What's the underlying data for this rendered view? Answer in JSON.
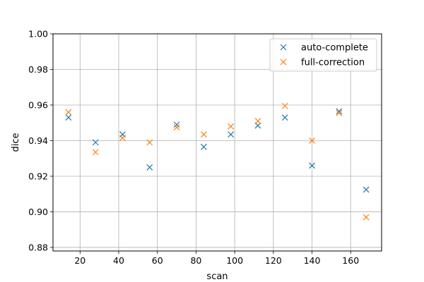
{
  "chart_data": {
    "type": "scatter",
    "xlabel": "scan",
    "ylabel": "dice",
    "xlim": [
      6,
      176
    ],
    "ylim": [
      0.878,
      1.0
    ],
    "xticks": [
      20,
      40,
      60,
      80,
      100,
      120,
      140,
      160
    ],
    "yticks": [
      0.88,
      0.9,
      0.92,
      0.94,
      0.96,
      0.98,
      1.0
    ],
    "grid": true,
    "legend_position": "top-right",
    "marker": "x",
    "series": [
      {
        "name": "auto-complete",
        "color": "#1f77b4",
        "x": [
          14,
          28,
          42,
          56,
          70,
          84,
          98,
          112,
          126,
          140,
          154,
          168
        ],
        "y": [
          0.953,
          0.939,
          0.9435,
          0.925,
          0.949,
          0.9365,
          0.9435,
          0.9485,
          0.953,
          0.926,
          0.9565,
          0.9125
        ]
      },
      {
        "name": "full-correction",
        "color": "#ff7f0e",
        "x": [
          14,
          28,
          42,
          56,
          70,
          84,
          98,
          112,
          126,
          140,
          154,
          168
        ],
        "y": [
          0.956,
          0.9335,
          0.9415,
          0.939,
          0.9475,
          0.9435,
          0.948,
          0.951,
          0.9595,
          0.94,
          0.9555,
          0.897
        ]
      }
    ]
  }
}
